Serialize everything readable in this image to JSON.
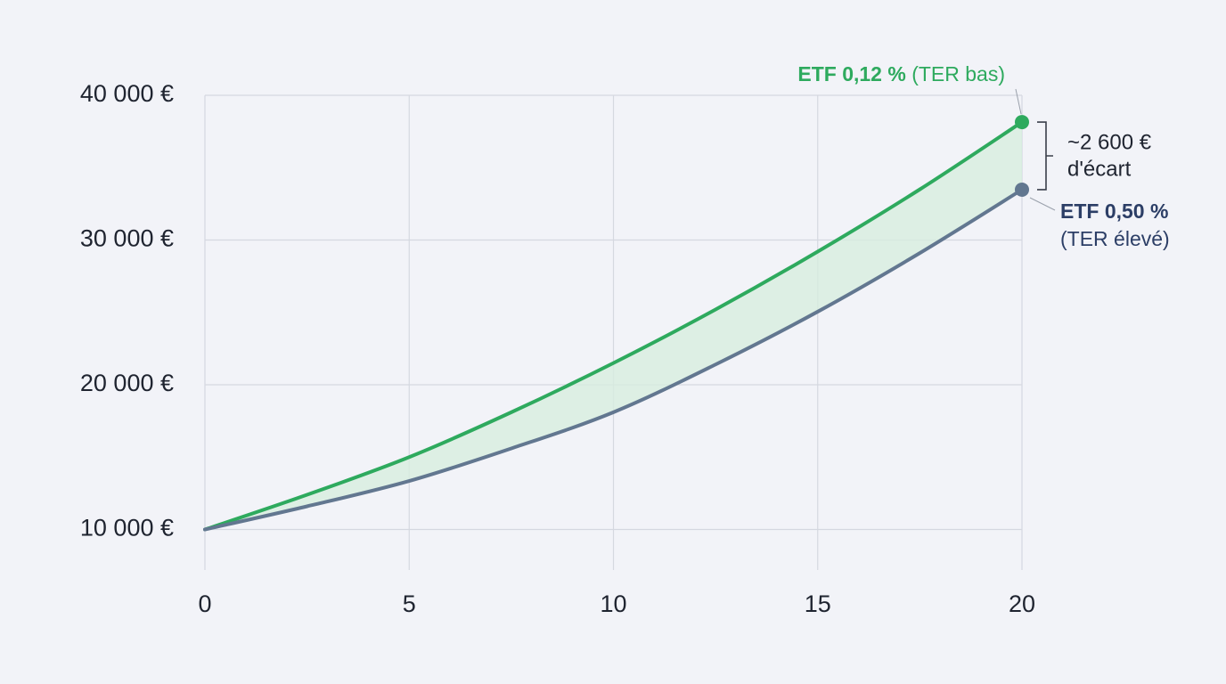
{
  "chart_data": {
    "type": "line",
    "x": [
      0,
      2.5,
      5,
      7.5,
      10,
      12.5,
      15,
      17.5,
      20
    ],
    "series": [
      {
        "name": "ETF 0,12 %",
        "note": "(TER bas)",
        "color": "#2eaa5e",
        "values": [
          10000,
          12400,
          15000,
          18100,
          21500,
          25200,
          29200,
          33500,
          38150
        ]
      },
      {
        "name": "ETF 0,50 %",
        "note": "(TER élevé)",
        "color": "#627790",
        "values": [
          10000,
          11600,
          13350,
          15600,
          18100,
          21400,
          25050,
          29100,
          33480
        ]
      }
    ],
    "annotation": [
      "~2 600 €",
      "d'écart"
    ],
    "xlim": [
      0,
      20
    ],
    "xticks": [
      0,
      5,
      10,
      15,
      20
    ],
    "ylim": [
      7200,
      40000
    ],
    "yticks": [
      {
        "value": 10000,
        "label": "10 000 €"
      },
      {
        "value": 20000,
        "label": "20 000 €"
      },
      {
        "value": 30000,
        "label": "30 000 €"
      },
      {
        "value": 40000,
        "label": "40 000 €"
      }
    ],
    "grid": true,
    "fill_between": "#d7eedf"
  }
}
